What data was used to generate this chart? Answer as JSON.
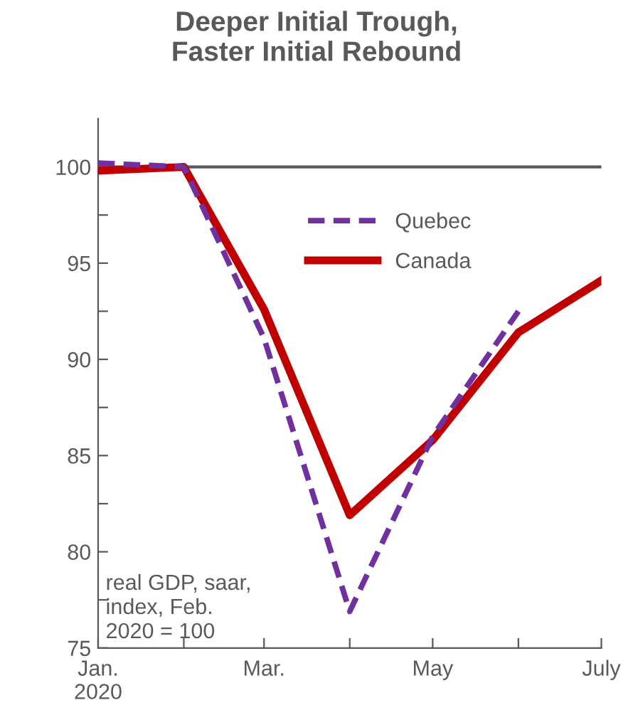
{
  "chart_data": {
    "type": "line",
    "title": "Deeper Initial Trough,\nFaster Initial Rebound",
    "x": [
      "2020-01",
      "2020-02",
      "2020-03",
      "2020-04",
      "2020-05",
      "2020-06",
      "2020-07"
    ],
    "series": [
      {
        "name": "Quebec",
        "color": "#7030a0",
        "line_style": "dashed",
        "values": [
          100.2,
          100,
          91.1,
          76.9,
          86.0,
          92.5,
          null
        ]
      },
      {
        "name": "Canada",
        "color": "#c00000",
        "line_style": "solid",
        "values": [
          99.8,
          100,
          92.6,
          81.9,
          85.8,
          91.4,
          94.1
        ]
      }
    ],
    "xlim": [
      "2020-01",
      "2020-07"
    ],
    "xticks": [
      {
        "value": "2020-01",
        "label": "Jan.\n2020"
      },
      {
        "value": "2020-02",
        "label": null
      },
      {
        "value": "2020-03",
        "label": "Mar."
      },
      {
        "value": "2020-04",
        "label": null
      },
      {
        "value": "2020-05",
        "label": "May"
      },
      {
        "value": "2020-06",
        "label": null
      },
      {
        "value": "2020-07",
        "label": "July"
      }
    ],
    "ylim": [
      75,
      102.5
    ],
    "yticks": [
      75,
      {
        "value": 77.5,
        "label": null
      },
      80,
      {
        "value": 82.5,
        "label": null
      },
      85,
      {
        "value": 87.5,
        "label": null
      },
      90,
      {
        "value": 92.5,
        "label": null
      },
      95,
      {
        "value": 97.5,
        "label": null
      },
      100
    ],
    "ref_lines": [
      {
        "axis": "y",
        "value": 100,
        "label": null,
        "color": "#595959"
      }
    ],
    "annotations": [
      "real GDP, saar,\nindex, Feb.\n2020 = 100"
    ],
    "legend": "top right",
    "grid": false,
    "marker": "none"
  }
}
